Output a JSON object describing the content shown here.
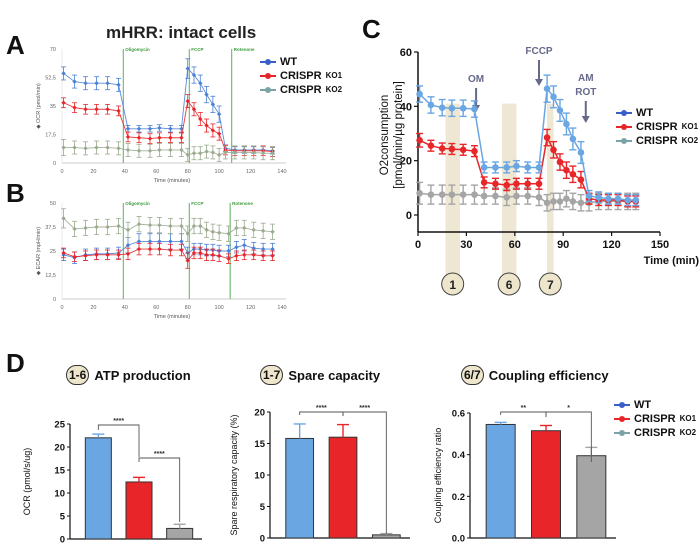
{
  "panels": {
    "A": "A",
    "B": "B",
    "C": "C",
    "D": "D"
  },
  "panelA_title": "mHRR: intact cells",
  "legend": [
    {
      "name": "WT",
      "sup": "",
      "color": "#3a5fc8"
    },
    {
      "name": "CRISPR",
      "sup": "KO1",
      "color": "#e8262a"
    },
    {
      "name": "CRISPR",
      "sup": "KO2",
      "color": "#7aa3a6"
    }
  ],
  "chart_data": [
    {
      "id": "A",
      "type": "line",
      "title": "mHRR: intact cells",
      "xlabel": "Time (minutes)",
      "ylabel": "OCR (pmol/min)",
      "xlim": [
        0,
        140
      ],
      "ylim": [
        0,
        70
      ],
      "xticks": [
        0,
        20,
        40,
        60,
        80,
        100,
        120,
        140
      ],
      "yticks": [
        0,
        17.5,
        35,
        52.5,
        70
      ],
      "ytick_labels": [
        "0",
        "17,5",
        "35",
        "52,5",
        "70"
      ],
      "injections": [
        {
          "label": "Oligomycin",
          "x": 39
        },
        {
          "label": "FCCP",
          "x": 81
        },
        {
          "label": "Rotenone",
          "x": 108
        }
      ],
      "x": [
        1,
        8,
        15,
        22,
        29,
        36,
        42,
        49,
        56,
        62,
        69,
        76,
        80,
        84,
        88,
        92,
        96,
        100,
        104,
        110,
        116,
        122,
        128,
        134
      ],
      "series": [
        {
          "name": "WT",
          "color": "#4a7fd6",
          "values": [
            55,
            50,
            49,
            49,
            49,
            48,
            21,
            21,
            21,
            21.5,
            21,
            21,
            58,
            54,
            49,
            42,
            36,
            30,
            9,
            8,
            8,
            8,
            8,
            7.5
          ],
          "err": [
            4,
            4,
            4,
            4,
            4,
            4,
            2,
            2,
            2,
            2,
            2,
            2,
            6,
            5,
            5,
            5,
            5,
            5,
            2,
            2,
            2,
            2,
            2,
            2
          ]
        },
        {
          "name": "CRISPR KO1",
          "color": "#e8262a",
          "values": [
            37,
            34,
            33,
            33,
            33,
            32,
            16,
            15.5,
            15,
            15.5,
            15.5,
            15.5,
            38,
            33,
            27,
            23,
            20,
            18,
            8,
            7.5,
            7.5,
            7.5,
            7.5,
            7
          ],
          "err": [
            3,
            3,
            3,
            3,
            3,
            3,
            3,
            3,
            3,
            3,
            3,
            3,
            4,
            4,
            4,
            4,
            4,
            4,
            3,
            3,
            3,
            3,
            3,
            3
          ]
        },
        {
          "name": "CRISPR KO2",
          "color": "#9aaa8e",
          "values": [
            9.5,
            9.5,
            9,
            9.5,
            9.5,
            9,
            8,
            7.5,
            7.5,
            8,
            8,
            8,
            5,
            6,
            6,
            7,
            6.5,
            5,
            6.5,
            6.5,
            6.5,
            6.5,
            6,
            6
          ],
          "err": [
            5,
            4,
            4,
            4,
            4,
            4,
            4,
            4,
            4,
            4,
            4,
            4,
            4,
            4,
            4,
            4,
            4,
            4,
            4,
            4,
            4,
            4,
            4,
            4
          ]
        }
      ]
    },
    {
      "id": "B",
      "type": "line",
      "xlabel": "Time (minutes)",
      "ylabel": "ECAR (mpH/min)",
      "xlim": [
        0,
        140
      ],
      "ylim": [
        0,
        50
      ],
      "xticks": [
        0,
        20,
        40,
        60,
        80,
        100,
        120,
        140
      ],
      "yticks": [
        0,
        12.5,
        25,
        37.5,
        50
      ],
      "ytick_labels": [
        "0",
        "12,5",
        "25",
        "37,5",
        "50"
      ],
      "injections": [
        {
          "label": "Oligomycin",
          "x": 39
        },
        {
          "label": "FCCP",
          "x": 81
        },
        {
          "label": "Rotenone",
          "x": 107
        }
      ],
      "x": [
        1,
        8,
        15,
        22,
        29,
        36,
        42,
        49,
        56,
        62,
        69,
        76,
        80,
        84,
        88,
        92,
        96,
        100,
        106,
        111,
        116,
        122,
        128,
        134
      ],
      "series": [
        {
          "name": "WT",
          "color": "#4a7fd6",
          "values": [
            23,
            21.5,
            23,
            23.5,
            23.5,
            24,
            28,
            30,
            30,
            30,
            30,
            30,
            24,
            26,
            26,
            25.5,
            25.5,
            25,
            25,
            27,
            28,
            26.5,
            26,
            26
          ],
          "err": [
            3,
            3,
            3,
            3,
            3,
            3,
            4,
            4,
            4,
            4,
            4,
            4,
            3,
            3,
            3,
            3,
            3,
            3,
            3,
            3,
            3,
            3,
            3,
            3
          ]
        },
        {
          "name": "CRISPR KO1",
          "color": "#e8262a",
          "values": [
            24,
            22,
            22.5,
            23,
            23,
            23,
            23.5,
            26,
            26,
            26,
            25.5,
            25.5,
            20,
            24,
            24,
            23,
            23,
            22.5,
            21,
            22.5,
            23,
            23,
            22.5,
            22.5
          ],
          "err": [
            2.5,
            2.5,
            2.5,
            2.5,
            2.5,
            2.5,
            3,
            3,
            3,
            3,
            3,
            3,
            4,
            3,
            3,
            3,
            3,
            3,
            2.5,
            2.5,
            2.5,
            2.5,
            2.5,
            2.5
          ]
        },
        {
          "name": "CRISPR KO2",
          "color": "#9aaa8e",
          "values": [
            42,
            36.5,
            37,
            37.5,
            37.5,
            38,
            36,
            39,
            38.5,
            38.5,
            38,
            38,
            34,
            38,
            38,
            36,
            35,
            34.5,
            34,
            37,
            37,
            36,
            35.5,
            35
          ],
          "err": [
            5,
            4,
            4,
            4,
            4,
            4,
            4,
            4,
            4,
            4,
            4,
            4,
            4,
            4,
            4,
            4,
            4,
            4,
            4,
            4,
            4,
            4,
            4,
            4
          ]
        }
      ]
    },
    {
      "id": "C",
      "type": "line",
      "ylabel_line1": "O2consumption",
      "ylabel_line2": "[pmol/min/µg protein]",
      "xlabel": "Time (min)",
      "xlim": [
        0,
        150
      ],
      "ylim": [
        -6,
        60
      ],
      "xticks": [
        0,
        30,
        60,
        90,
        120,
        150
      ],
      "yticks": [
        0,
        20,
        40,
        60
      ],
      "arrows": [
        {
          "label": "OM",
          "x": 36
        },
        {
          "label": "FCCP",
          "x": 75
        },
        {
          "label": "AM ROT",
          "x": 104
        }
      ],
      "shaded_regions": [
        {
          "label": "1",
          "x": [
            17,
            26
          ]
        },
        {
          "label": "6",
          "x": [
            52,
            61
          ]
        },
        {
          "label": "7",
          "x": [
            80,
            84
          ]
        }
      ],
      "x": [
        1,
        8,
        15,
        21,
        28,
        35,
        41,
        48,
        55,
        61,
        68,
        75,
        80,
        84,
        88,
        92,
        96,
        101,
        106,
        112,
        118,
        124,
        130,
        135
      ],
      "series": [
        {
          "name": "WT",
          "color": "#6aa6e2",
          "values": [
            44.5,
            40.5,
            39.5,
            39.3,
            39.3,
            39,
            17.5,
            17.5,
            17.5,
            18,
            17.5,
            17.5,
            46.5,
            43.5,
            38.5,
            33.5,
            28,
            23,
            7,
            6.5,
            6,
            6,
            5.5,
            5.5
          ],
          "err": [
            3,
            3,
            3,
            3,
            3,
            3,
            2,
            2,
            2,
            2,
            2,
            2,
            5,
            4,
            4,
            4,
            4,
            4,
            2,
            2,
            2,
            2,
            2,
            2
          ]
        },
        {
          "name": "CRISPR KO1",
          "color": "#e8262a",
          "values": [
            27.5,
            25.5,
            24.5,
            24.3,
            24,
            23.5,
            12,
            11.5,
            11,
            11.5,
            11.5,
            11.5,
            28.5,
            24,
            19.5,
            16.5,
            15,
            13,
            6,
            5.5,
            5.5,
            5.5,
            5,
            5
          ],
          "err": [
            2.5,
            2,
            2,
            2,
            2,
            2,
            2,
            2,
            2,
            2,
            2,
            2,
            3,
            3,
            3,
            3,
            3,
            3,
            2,
            2,
            2,
            2,
            2,
            2
          ]
        },
        {
          "name": "CRISPR KO2",
          "color": "#a5a5a5",
          "values": [
            8,
            7.5,
            7.5,
            7.5,
            7.5,
            7.5,
            7,
            7,
            6.5,
            7,
            7,
            6.5,
            4.5,
            5,
            5,
            6,
            5,
            4.5,
            4.5,
            5,
            5,
            5,
            5,
            5
          ],
          "err": [
            4,
            3.5,
            3.5,
            3.5,
            3.5,
            3.5,
            3,
            3,
            3,
            3,
            3,
            3,
            3,
            3,
            3,
            3,
            3,
            3,
            3,
            3,
            3,
            3,
            3,
            3
          ]
        }
      ]
    },
    {
      "id": "D1",
      "type": "bar",
      "badge": "1-6",
      "title": "ATP production",
      "ylabel": "OCR (pmol/s/ug)",
      "ylim": [
        0,
        25
      ],
      "yticks": [
        0,
        5,
        10,
        15,
        20,
        25
      ],
      "categories": [
        "WT",
        "CRISPR KO1",
        "CRISPR KO2"
      ],
      "values": [
        22.0,
        12.4,
        2.3
      ],
      "err": [
        0.8,
        1.0,
        0.9
      ],
      "colors": [
        "#6aa6e2",
        "#e8262a",
        "#a5a5a5"
      ],
      "significance": [
        {
          "pair": [
            0,
            1
          ],
          "label": "****"
        },
        {
          "pair": [
            1,
            2
          ],
          "label": "****"
        }
      ]
    },
    {
      "id": "D2",
      "type": "bar",
      "badge": "1-7",
      "title": "Spare capacity",
      "ylabel": "Spare respiratory capacity (%)",
      "ylim": [
        0,
        20
      ],
      "yticks": [
        0,
        5,
        10,
        15,
        20
      ],
      "categories": [
        "WT",
        "CRISPR KO1",
        "CRISPR KO2"
      ],
      "values": [
        15.8,
        16.0,
        0.5
      ],
      "err": [
        2.3,
        2.0,
        0.2
      ],
      "colors": [
        "#6aa6e2",
        "#e8262a",
        "#a5a5a5"
      ],
      "significance": [
        {
          "pair": [
            0,
            1
          ],
          "label": "****"
        },
        {
          "pair": [
            1,
            2
          ],
          "label": "****"
        }
      ]
    },
    {
      "id": "D3",
      "type": "bar",
      "badge": "6/7",
      "title": "Coupling efficiency",
      "ylabel": "Coupling efficiency ratio",
      "ylim": [
        0,
        0.6
      ],
      "yticks": [
        0.0,
        0.2,
        0.4,
        0.6
      ],
      "ytick_labels": [
        "0.0",
        "0.2",
        "0.4",
        "0.6"
      ],
      "categories": [
        "WT",
        "CRISPR KO1",
        "CRISPR KO2"
      ],
      "values": [
        0.545,
        0.515,
        0.395
      ],
      "err": [
        0.01,
        0.025,
        0.04
      ],
      "colors": [
        "#6aa6e2",
        "#e8262a",
        "#a5a5a5"
      ],
      "significance": [
        {
          "pair": [
            0,
            1
          ],
          "label": "**"
        },
        {
          "pair": [
            1,
            2
          ],
          "label": "*"
        }
      ]
    }
  ]
}
